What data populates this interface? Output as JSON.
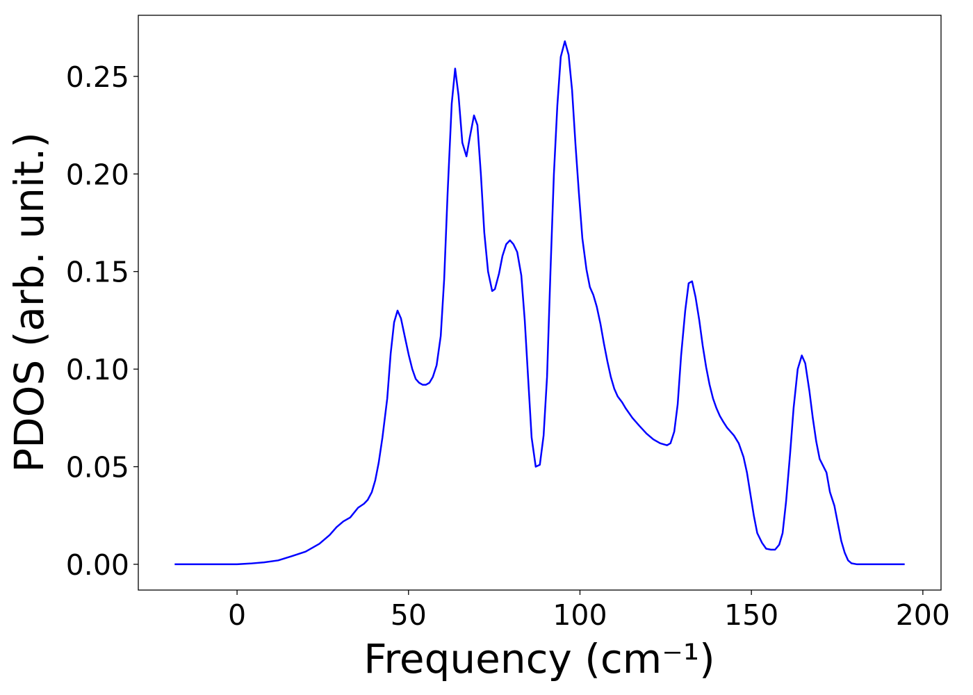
{
  "chart_data": {
    "type": "line",
    "xlabel": "Frequency (cm⁻¹)",
    "ylabel": "PDOS (arb. unit.)",
    "x": [
      -18.2,
      0,
      3.9,
      7.9,
      12,
      16,
      20,
      24,
      27,
      29,
      31,
      33,
      35.3,
      37,
      38.1,
      39.3,
      40.3,
      41.3,
      42.4,
      43.8,
      44.8,
      45.8,
      46.8,
      47.8,
      49,
      50.1,
      51.1,
      52.1,
      53.1,
      54.1,
      55.1,
      56.1,
      57.1,
      58.2,
      59.4,
      60.4,
      61.4,
      62.6,
      63.6,
      64.6,
      65.7,
      66.9,
      67.9,
      69.1,
      70.1,
      71.1,
      72.1,
      73.2,
      74.4,
      75.2,
      76.4,
      77.4,
      78.5,
      79.6,
      80.6,
      81.7,
      82.9,
      83.9,
      84.9,
      85.9,
      87.1,
      88.3,
      89.4,
      90.4,
      91.4,
      92.4,
      93.4,
      94.4,
      95.6,
      96.7,
      97.7,
      98.7,
      99.7,
      100.7,
      101.9,
      102.9,
      103.9,
      104.9,
      106,
      107,
      108,
      109,
      110,
      111,
      112.3,
      113.3,
      115.3,
      117.3,
      119.4,
      121.4,
      123.4,
      125.4,
      126.4,
      127.5,
      128.5,
      129.5,
      130.7,
      131.7,
      132.7,
      133.7,
      134.8,
      135.8,
      136.8,
      137.8,
      138.8,
      139.8,
      140.8,
      141.8,
      142.9,
      144.9,
      146.3,
      147.7,
      148.7,
      149.7,
      150.7,
      151.7,
      153.1,
      154.3,
      155.7,
      156.9,
      158.1,
      159.1,
      160.1,
      161.3,
      162.3,
      163.5,
      164.7,
      165.7,
      166.9,
      167.9,
      168.9,
      169.9,
      171.9,
      172.9,
      174.2,
      175.2,
      176.2,
      177.2,
      178.2,
      179.2,
      180.8,
      194.7
    ],
    "series": [
      {
        "color": "#0000ff",
        "values": [
          0,
          0,
          0.0004,
          0.001,
          0.002,
          0.0042,
          0.0065,
          0.0105,
          0.015,
          0.019,
          0.022,
          0.024,
          0.029,
          0.031,
          0.033,
          0.037,
          0.043,
          0.052,
          0.065,
          0.085,
          0.108,
          0.124,
          0.13,
          0.126,
          0.116,
          0.107,
          0.1,
          0.095,
          0.093,
          0.092,
          0.092,
          0.093,
          0.096,
          0.102,
          0.117,
          0.146,
          0.19,
          0.236,
          0.254,
          0.24,
          0.216,
          0.209,
          0.219,
          0.23,
          0.225,
          0.2,
          0.17,
          0.15,
          0.14,
          0.141,
          0.149,
          0.158,
          0.164,
          0.166,
          0.164,
          0.16,
          0.148,
          0.125,
          0.095,
          0.065,
          0.05,
          0.051,
          0.066,
          0.096,
          0.15,
          0.2,
          0.235,
          0.26,
          0.268,
          0.261,
          0.243,
          0.215,
          0.19,
          0.167,
          0.151,
          0.142,
          0.138,
          0.132,
          0.123,
          0.113,
          0.104,
          0.096,
          0.09,
          0.086,
          0.083,
          0.08,
          0.075,
          0.071,
          0.067,
          0.064,
          0.062,
          0.061,
          0.062,
          0.068,
          0.082,
          0.107,
          0.13,
          0.144,
          0.145,
          0.137,
          0.125,
          0.112,
          0.101,
          0.092,
          0.085,
          0.08,
          0.076,
          0.073,
          0.07,
          0.066,
          0.062,
          0.055,
          0.047,
          0.036,
          0.025,
          0.016,
          0.011,
          0.008,
          0.0075,
          0.0075,
          0.01,
          0.016,
          0.032,
          0.057,
          0.08,
          0.1,
          0.107,
          0.103,
          0.089,
          0.075,
          0.063,
          0.054,
          0.047,
          0.037,
          0.03,
          0.021,
          0.012,
          0.006,
          0.002,
          0.0005,
          0,
          0
        ]
      }
    ],
    "xlim": [
      -28.8,
      205.3
    ],
    "ylim": [
      -0.0132,
      0.2813
    ],
    "xticks": [
      0,
      50,
      100,
      150,
      200
    ],
    "yticks": [
      {
        "value": 0,
        "label": "0.00"
      },
      {
        "value": 0.05,
        "label": "0.05"
      },
      {
        "value": 0.1,
        "label": "0.10"
      },
      {
        "value": 0.15,
        "label": "0.15"
      },
      {
        "value": 0.2,
        "label": "0.20"
      },
      {
        "value": 0.25,
        "label": "0.25"
      }
    ]
  }
}
